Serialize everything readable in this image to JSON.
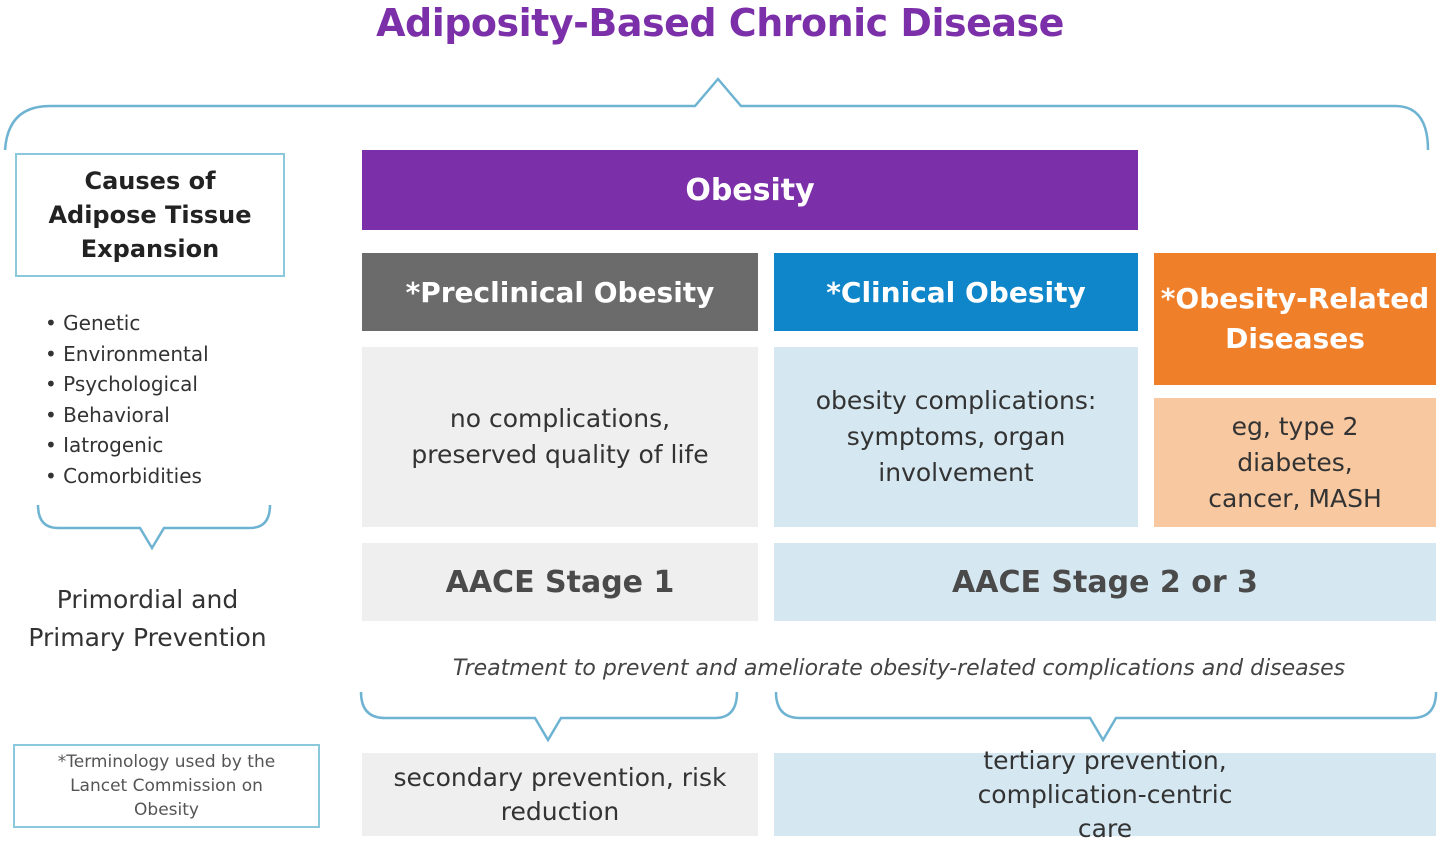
{
  "title": "Adiposity-Based Chronic Disease",
  "colors": {
    "purple": "#7b2fa8",
    "gray": "#6b6b6b",
    "blue": "#0e86c9",
    "orange": "#f07f2a",
    "peach": "#f8c8a0",
    "light_gray": "#efefef",
    "light_blue": "#d5e8f2",
    "brace": "#6fb3d2"
  },
  "causes": {
    "title": "Causes of Adipose Tissue Expansion",
    "items": [
      "Genetic",
      "Environmental",
      "Psychological",
      "Behavioral",
      "Iatrogenic",
      "Comorbidities"
    ],
    "prevention": "Primordial and Primary Prevention"
  },
  "footnote": "*Terminology used by the Lancet Commission on Obesity",
  "obesity": "Obesity",
  "columns": {
    "preclinical": {
      "title": "*Preclinical Obesity",
      "description": "no complications, preserved quality of life"
    },
    "clinical": {
      "title": "*Clinical Obesity",
      "description": "obesity complications: symptoms, organ involvement"
    },
    "related": {
      "title": "*Obesity-Related Diseases",
      "description": "eg, type 2 diabetes, cancer, MASH"
    }
  },
  "stages": {
    "stage1": "AACE Stage 1",
    "stage23": "AACE Stage 2 or 3"
  },
  "treatment": "Treatment to prevent and ameliorate obesity-related complications and diseases",
  "outcomes": {
    "secondary": "secondary prevention, risk reduction",
    "tertiary": "tertiary prevention, complication-centric care"
  }
}
